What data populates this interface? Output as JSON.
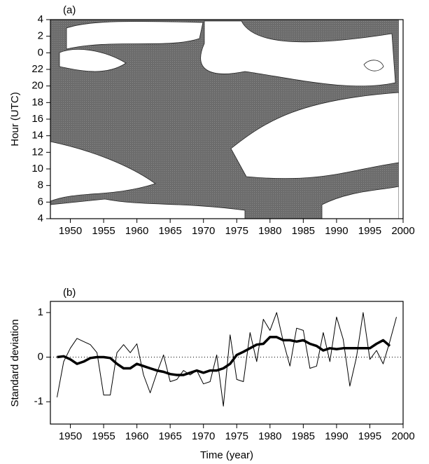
{
  "chart_data": [
    {
      "type": "contour",
      "title": "(a)",
      "ylabel": "Hour (UTC)",
      "xlim": [
        1947,
        2000
      ],
      "xticks": [
        1950,
        1955,
        1960,
        1965,
        1970,
        1975,
        1980,
        1985,
        1990,
        1995,
        2000
      ],
      "ylim": [
        4,
        28
      ],
      "yticks": [
        4,
        6,
        8,
        10,
        12,
        14,
        16,
        18,
        20,
        22,
        {
          "value": 24,
          "label": "0"
        },
        {
          "value": 26,
          "label": "2"
        },
        {
          "value": 28,
          "label": "4"
        }
      ]
    },
    {
      "type": "line",
      "title": "(b)",
      "ylabel": "Standard deviation",
      "xlabel": "Time (year)",
      "xlim": [
        1947,
        2000
      ],
      "xticks": [
        1950,
        1955,
        1960,
        1965,
        1970,
        1975,
        1980,
        1985,
        1990,
        1995,
        2000
      ],
      "ylim": [
        -1.5,
        1.25
      ],
      "yticks": [
        -1,
        0,
        1
      ],
      "reference_line": 0,
      "x": [
        1948,
        1949,
        1950,
        1951,
        1952,
        1953,
        1954,
        1955,
        1956,
        1957,
        1958,
        1959,
        1960,
        1961,
        1962,
        1963,
        1964,
        1965,
        1966,
        1967,
        1968,
        1969,
        1970,
        1971,
        1972,
        1973,
        1974,
        1975,
        1976,
        1977,
        1978,
        1979,
        1980,
        1981,
        1982,
        1983,
        1984,
        1985,
        1986,
        1987,
        1988,
        1989,
        1990,
        1991,
        1992,
        1993,
        1994,
        1995,
        1996,
        1997,
        1998,
        1999
      ],
      "series": [
        {
          "color": "#000000",
          "width": 1,
          "values": [
            -0.9,
            -0.1,
            0.2,
            0.42,
            0.35,
            0.28,
            0.1,
            -0.85,
            -0.85,
            0.1,
            0.28,
            0.1,
            0.3,
            -0.4,
            -0.8,
            -0.35,
            0.05,
            -0.55,
            -0.5,
            -0.3,
            -0.4,
            -0.3,
            -0.6,
            -0.55,
            0.05,
            -1.1,
            0.5,
            -0.5,
            -0.55,
            0.55,
            -0.1,
            0.85,
            0.6,
            1.0,
            0.35,
            -0.2,
            0.65,
            0.6,
            -0.25,
            -0.2,
            0.55,
            -0.1,
            0.9,
            0.4,
            -0.65,
            0.0,
            1.0,
            -0.05,
            0.15,
            -0.15,
            0.35,
            0.9
          ]
        },
        {
          "color": "#000000",
          "width": 3.5,
          "values": [
            0,
            0.02,
            -0.05,
            -0.15,
            -0.1,
            -0.02,
            0,
            0,
            -0.02,
            -0.15,
            -0.25,
            -0.25,
            -0.15,
            -0.2,
            -0.25,
            -0.3,
            -0.33,
            -0.38,
            -0.4,
            -0.4,
            -0.35,
            -0.3,
            -0.35,
            -0.3,
            -0.3,
            -0.25,
            -0.15,
            0.05,
            0.12,
            0.2,
            0.28,
            0.3,
            0.45,
            0.45,
            0.38,
            0.38,
            0.35,
            0.38,
            0.3,
            0.25,
            0.15,
            0.2,
            0.18,
            0.2,
            0.2,
            0.2,
            0.2,
            0.2,
            0.3,
            0.38,
            0.25,
            null
          ]
        }
      ]
    }
  ]
}
